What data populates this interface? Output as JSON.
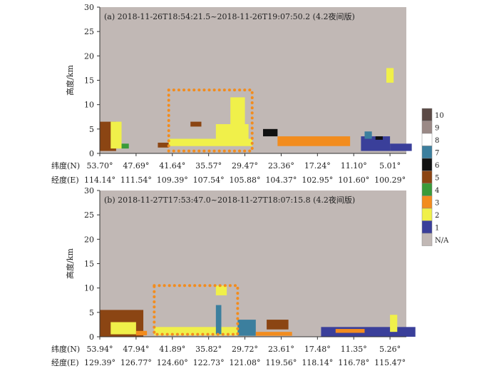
{
  "colorbar": {
    "labels": [
      "10",
      "9",
      "8",
      "7",
      "6",
      "5",
      "4",
      "3",
      "2",
      "1",
      "N/A"
    ],
    "colors": [
      "#5b4a46",
      "#9a8986",
      "#ffffff",
      "#3c7f9e",
      "#111111",
      "#8b4513",
      "#3a9a3a",
      "#f28c1e",
      "#f0f04a",
      "#3a3f9a",
      "#c1b8b5"
    ]
  },
  "chart_data": [
    {
      "type": "heatmap",
      "title": "(a) 2018-11-26T18:54:21.5~2018-11-26T19:07:50.2 (4.2夜间版)",
      "ylabel": "高度/km",
      "ylim": [
        0,
        30
      ],
      "yticks": [
        "0",
        "5",
        "10",
        "15",
        "20",
        "25",
        "30"
      ],
      "lat_label": "纬度(N)",
      "lon_label": "经度(E)",
      "lat_ticks": [
        "53.70°",
        "47.69°",
        "41.64°",
        "35.57°",
        "29.47°",
        "23.36°",
        "17.24°",
        "11.10°",
        "5.01°"
      ],
      "lon_ticks": [
        "114.14°",
        "111.54°",
        "109.39°",
        "107.54°",
        "105.88°",
        "104.37°",
        "102.95°",
        "101.60°",
        "100.29°"
      ],
      "highlight_box": {
        "x": [
          1.9,
          4.2
        ],
        "y": [
          0.5,
          13
        ]
      },
      "regions": [
        {
          "class": 5,
          "x": [
            0.0,
            0.45
          ],
          "y": [
            0.5,
            6.5
          ]
        },
        {
          "class": 2,
          "x": [
            0.3,
            0.6
          ],
          "y": [
            1.0,
            6.5
          ]
        },
        {
          "class": 4,
          "x": [
            0.6,
            0.8
          ],
          "y": [
            1.0,
            2.0
          ]
        },
        {
          "class": 5,
          "x": [
            1.6,
            1.9
          ],
          "y": [
            1.2,
            2.2
          ]
        },
        {
          "class": 5,
          "x": [
            2.5,
            2.8
          ],
          "y": [
            5.5,
            6.5
          ]
        },
        {
          "class": 2,
          "x": [
            1.9,
            4.2
          ],
          "y": [
            1.5,
            3.0
          ]
        },
        {
          "class": 2,
          "x": [
            3.2,
            4.1
          ],
          "y": [
            3.0,
            6.0
          ]
        },
        {
          "class": 2,
          "x": [
            3.6,
            4.0
          ],
          "y": [
            6.0,
            11.5
          ]
        },
        {
          "class": 6,
          "x": [
            4.5,
            4.9
          ],
          "y": [
            3.5,
            5.0
          ]
        },
        {
          "class": 3,
          "x": [
            4.9,
            6.9
          ],
          "y": [
            1.5,
            3.5
          ]
        },
        {
          "class": 1,
          "x": [
            7.2,
            8.0
          ],
          "y": [
            0.5,
            3.5
          ]
        },
        {
          "class": 7,
          "x": [
            7.3,
            7.5
          ],
          "y": [
            3.0,
            4.5
          ]
        },
        {
          "class": 6,
          "x": [
            7.6,
            7.8
          ],
          "y": [
            2.8,
            3.5
          ]
        },
        {
          "class": 2,
          "x": [
            7.9,
            8.1
          ],
          "y": [
            14.5,
            17.5
          ]
        },
        {
          "class": 1,
          "x": [
            8.0,
            8.6
          ],
          "y": [
            0.5,
            2.0
          ]
        }
      ]
    },
    {
      "type": "heatmap",
      "title": "(b) 2018-11-27T17:53:47.0~2018-11-27T18:07:15.8 (4.2夜间版)",
      "ylabel": "高度/km",
      "ylim": [
        0,
        30
      ],
      "yticks": [
        "0",
        "5",
        "10",
        "15",
        "20",
        "25",
        "30"
      ],
      "lat_label": "纬度(N)",
      "lon_label": "经度(E)",
      "lat_ticks": [
        "53.94°",
        "47.94°",
        "41.89°",
        "35.82°",
        "29.72°",
        "23.61°",
        "17.48°",
        "11.35°",
        "5.26°"
      ],
      "lon_ticks": [
        "129.39°",
        "126.77°",
        "124.60°",
        "122.73°",
        "121.08°",
        "119.56°",
        "118.14°",
        "116.78°",
        "115.47°"
      ],
      "highlight_box": {
        "x": [
          1.5,
          3.8
        ],
        "y": [
          0.5,
          10.5
        ]
      },
      "regions": [
        {
          "class": 5,
          "x": [
            0.0,
            1.2
          ],
          "y": [
            0.0,
            5.5
          ]
        },
        {
          "class": 2,
          "x": [
            0.3,
            1.0
          ],
          "y": [
            0.5,
            3.0
          ]
        },
        {
          "class": 3,
          "x": [
            1.0,
            1.3
          ],
          "y": [
            0.3,
            1.2
          ]
        },
        {
          "class": 2,
          "x": [
            1.5,
            3.8
          ],
          "y": [
            0.3,
            2.0
          ]
        },
        {
          "class": 2,
          "x": [
            3.2,
            3.5
          ],
          "y": [
            8.5,
            10.5
          ]
        },
        {
          "class": 7,
          "x": [
            3.2,
            3.35
          ],
          "y": [
            0.5,
            6.5
          ]
        },
        {
          "class": 7,
          "x": [
            3.8,
            4.3
          ],
          "y": [
            0.2,
            3.5
          ]
        },
        {
          "class": 5,
          "x": [
            4.6,
            5.2
          ],
          "y": [
            1.5,
            3.5
          ]
        },
        {
          "class": 3,
          "x": [
            4.3,
            5.3
          ],
          "y": [
            0.2,
            1.0
          ]
        },
        {
          "class": 1,
          "x": [
            6.1,
            8.7
          ],
          "y": [
            0.0,
            2.0
          ]
        },
        {
          "class": 3,
          "x": [
            6.5,
            7.3
          ],
          "y": [
            0.8,
            1.6
          ]
        },
        {
          "class": 2,
          "x": [
            8.0,
            8.2
          ],
          "y": [
            1.0,
            4.5
          ]
        }
      ]
    }
  ]
}
